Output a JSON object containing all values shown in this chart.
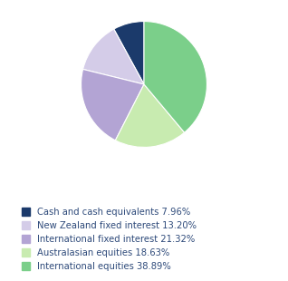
{
  "title": "",
  "slices": [
    {
      "label": "Cash and cash equivalents 7.96%",
      "value": 7.96,
      "color": "#1b3a6b"
    },
    {
      "label": "New Zealand fixed interest 13.20%",
      "value": 13.2,
      "color": "#d4cce8"
    },
    {
      "label": "International fixed interest 21.32%",
      "value": 21.32,
      "color": "#b3a4d4"
    },
    {
      "label": "Australasian equities 18.63%",
      "value": 18.63,
      "color": "#c8ebb0"
    },
    {
      "label": "International equities 38.89%",
      "value": 38.89,
      "color": "#7bcf8a"
    }
  ],
  "legend_fontsize": 7.2,
  "legend_color": "#2e4a7a",
  "startangle": 90,
  "figsize": [
    3.18,
    3.1
  ],
  "dpi": 100
}
